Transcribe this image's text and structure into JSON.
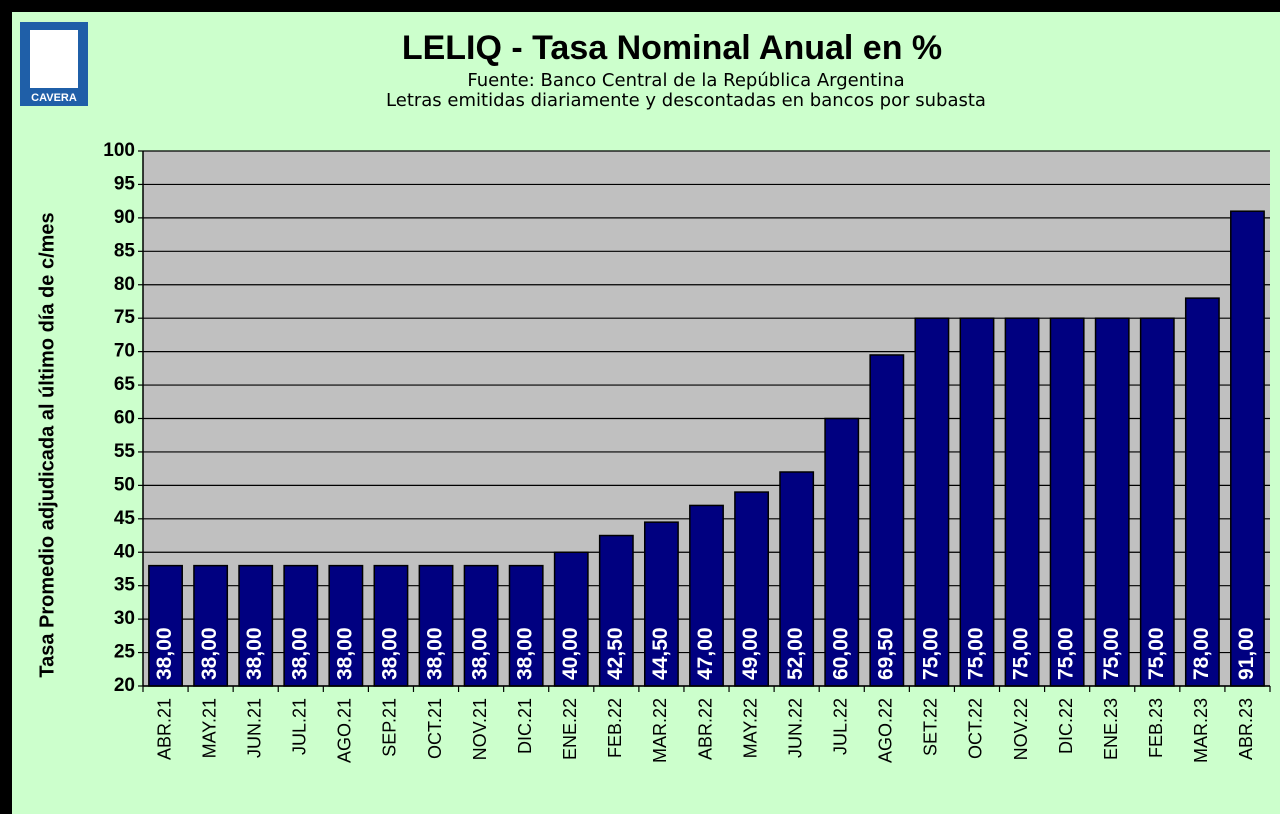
{
  "logo_text": "CAVERA",
  "chart_data": {
    "type": "bar",
    "title": "LELIQ - Tasa Nominal Anual en %",
    "subtitle": [
      "Fuente: Banco Central de la República Argentina",
      "Letras emitidas diariamente y descontadas en bancos por subasta"
    ],
    "y_label": "Tasa Promedio adjudicada al último día de c/mes",
    "categories": [
      "ABR.21",
      "MAY.21",
      "JUN.21",
      "JUL.21",
      "AGO.21",
      "SEP.21",
      "OCT.21",
      "NOV.21",
      "DIC.21",
      "ENE.22",
      "FEB.22",
      "MAR.22",
      "ABR.22",
      "MAY.22",
      "JUN.22",
      "JUL.22",
      "AGO.22",
      "SET.22",
      "OCT.22",
      "NOV.22",
      "DIC.22",
      "ENE.23",
      "FEB.23",
      "MAR.23",
      "ABR.23"
    ],
    "values": [
      38,
      38,
      38,
      38,
      38,
      38,
      38,
      38,
      38,
      40,
      42.5,
      44.5,
      47,
      49,
      52,
      60,
      69.5,
      75,
      75,
      75,
      75,
      75,
      75,
      78,
      91
    ],
    "value_labels": [
      "38,00",
      "38,00",
      "38,00",
      "38,00",
      "38,00",
      "38,00",
      "38,00",
      "38,00",
      "38,00",
      "40,00",
      "42,50",
      "44,50",
      "47,00",
      "49,00",
      "52,00",
      "60,00",
      "69,50",
      "75,00",
      "75,00",
      "75,00",
      "75,00",
      "75,00",
      "75,00",
      "78,00",
      "91,00"
    ],
    "color": "#000080",
    "ylim": [
      20,
      100
    ],
    "yticks": [
      20,
      25,
      30,
      35,
      40,
      45,
      50,
      55,
      60,
      65,
      70,
      75,
      80,
      85,
      90,
      95,
      100
    ],
    "grid": true
  }
}
